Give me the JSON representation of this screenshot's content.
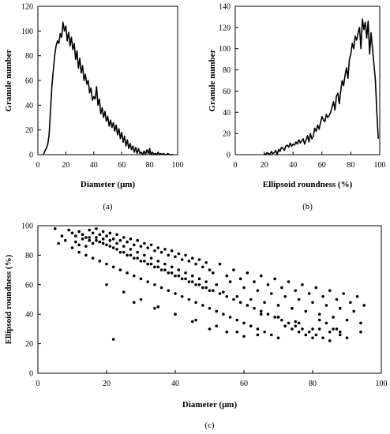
{
  "chart_data": [
    {
      "id": "a",
      "type": "line",
      "panel_label": "(a)",
      "xlabel": "Diameter (μm)",
      "ylabel": "Granule number",
      "xlim": [
        0,
        100
      ],
      "ylim": [
        0,
        120
      ],
      "xticks": [
        0,
        20,
        40,
        60,
        80,
        100
      ],
      "yticks": [
        0,
        20,
        40,
        60,
        80,
        100,
        120
      ],
      "grid": false,
      "series": [
        {
          "x": [
            4,
            5,
            6,
            7,
            8,
            9,
            10,
            11,
            12,
            13,
            14,
            15,
            16,
            17,
            18,
            19,
            20,
            21,
            22,
            23,
            24,
            25,
            26,
            27,
            28,
            29,
            30,
            31,
            32,
            33,
            34,
            35,
            36,
            37,
            38,
            39,
            40,
            41,
            42,
            43,
            44,
            45,
            46,
            47,
            48,
            49,
            50,
            51,
            52,
            53,
            54,
            55,
            56,
            57,
            58,
            59,
            60,
            61,
            62,
            63,
            64,
            65,
            66,
            67,
            68,
            69,
            70,
            71,
            72,
            73,
            74,
            75,
            76,
            77,
            78,
            79,
            80,
            81,
            82,
            83,
            84,
            85,
            86,
            87,
            88,
            89,
            90,
            91,
            92,
            93,
            94,
            95,
            96,
            97
          ],
          "y": [
            0,
            3,
            5,
            8,
            16,
            35,
            55,
            68,
            80,
            88,
            92,
            90,
            98,
            95,
            107,
            100,
            104,
            92,
            99,
            88,
            95,
            85,
            90,
            77,
            84,
            70,
            78,
            66,
            72,
            60,
            65,
            57,
            60,
            50,
            54,
            44,
            47,
            45,
            55,
            40,
            45,
            33,
            38,
            30,
            35,
            27,
            31,
            23,
            28,
            22,
            26,
            19,
            24,
            16,
            21,
            13,
            18,
            10,
            15,
            7,
            12,
            5,
            9,
            4,
            7,
            2,
            6,
            1,
            5,
            1,
            2,
            0,
            3,
            0,
            4,
            1,
            5,
            0,
            2,
            0,
            1,
            0,
            2,
            0,
            1,
            0,
            1,
            0,
            0,
            1,
            0,
            0,
            0,
            0
          ]
        }
      ]
    },
    {
      "id": "b",
      "type": "line",
      "panel_label": "(b)",
      "xlabel": "Ellipsoid roundness (%)",
      "ylabel": "Granule number",
      "xlim": [
        0,
        100
      ],
      "ylim": [
        0,
        140
      ],
      "xticks": [
        0,
        20,
        40,
        60,
        80,
        100
      ],
      "yticks": [
        0,
        20,
        40,
        60,
        80,
        100,
        120,
        140
      ],
      "grid": false,
      "series": [
        {
          "x": [
            20,
            21,
            22,
            23,
            24,
            25,
            26,
            27,
            28,
            29,
            30,
            31,
            32,
            33,
            34,
            35,
            36,
            37,
            38,
            39,
            40,
            41,
            42,
            43,
            44,
            45,
            46,
            47,
            48,
            49,
            50,
            51,
            52,
            53,
            54,
            55,
            56,
            57,
            58,
            59,
            60,
            61,
            62,
            63,
            64,
            65,
            66,
            67,
            68,
            69,
            70,
            71,
            72,
            73,
            74,
            75,
            76,
            77,
            78,
            79,
            80,
            81,
            82,
            83,
            84,
            85,
            86,
            87,
            88,
            89,
            90,
            91,
            92,
            93,
            94,
            95,
            96,
            97,
            98,
            99
          ],
          "y": [
            1,
            0,
            2,
            1,
            0,
            3,
            1,
            2,
            4,
            0,
            5,
            3,
            7,
            6,
            4,
            8,
            9,
            7,
            11,
            8,
            10,
            9,
            12,
            10,
            14,
            11,
            13,
            15,
            10,
            14,
            18,
            12,
            20,
            15,
            17,
            25,
            22,
            28,
            24,
            30,
            36,
            33,
            31,
            38,
            35,
            37,
            40,
            45,
            50,
            42,
            55,
            58,
            48,
            60,
            70,
            65,
            75,
            82,
            72,
            90,
            95,
            105,
            100,
            112,
            108,
            115,
            120,
            100,
            128,
            118,
            125,
            110,
            126,
            95,
            115,
            100,
            85,
            70,
            40,
            15
          ]
        }
      ]
    },
    {
      "id": "c",
      "type": "scatter",
      "panel_label": "(c)",
      "xlabel": "Diameter (μm)",
      "ylabel": "Ellipsoid roundness (%)",
      "xlim": [
        0,
        100
      ],
      "ylim": [
        0,
        100
      ],
      "xticks": [
        0,
        20,
        40,
        60,
        80,
        100
      ],
      "yticks": [
        0,
        20,
        40,
        60,
        80,
        100
      ],
      "grid": false,
      "series": [
        {
          "x": [
            5,
            6,
            7,
            8,
            9,
            10,
            10,
            11,
            11,
            12,
            12,
            13,
            13,
            14,
            14,
            15,
            15,
            16,
            16,
            17,
            17,
            18,
            18,
            19,
            19,
            20,
            20,
            21,
            21,
            22,
            22,
            23,
            23,
            24,
            24,
            25,
            25,
            26,
            26,
            27,
            27,
            28,
            28,
            29,
            29,
            30,
            30,
            31,
            31,
            32,
            32,
            33,
            33,
            34,
            34,
            35,
            35,
            36,
            36,
            37,
            37,
            38,
            38,
            39,
            39,
            40,
            40,
            41,
            41,
            42,
            42,
            43,
            43,
            44,
            44,
            45,
            45,
            46,
            46,
            47,
            47,
            48,
            48,
            49,
            49,
            50,
            50,
            51,
            52,
            53,
            54,
            55,
            56,
            57,
            58,
            59,
            60,
            61,
            62,
            63,
            64,
            65,
            66,
            67,
            68,
            69,
            70,
            71,
            72,
            73,
            74,
            75,
            76,
            77,
            78,
            79,
            80,
            81,
            82,
            83,
            84,
            85,
            86,
            87,
            88,
            89,
            90,
            91,
            92,
            93,
            94,
            95,
            12,
            14,
            16,
            18,
            20,
            22,
            24,
            26,
            28,
            30,
            32,
            34,
            36,
            38,
            40,
            42,
            44,
            46,
            48,
            50,
            52,
            54,
            56,
            58,
            60,
            62,
            64,
            66,
            68,
            70,
            72,
            74,
            76,
            78,
            80,
            82,
            84,
            86,
            88,
            15,
            17,
            19,
            21,
            23,
            25,
            27,
            29,
            31,
            33,
            35,
            37,
            39,
            41,
            43,
            45,
            47,
            49,
            51,
            53,
            55,
            57,
            59,
            61,
            63,
            65,
            67,
            69,
            71,
            73,
            75,
            77,
            79,
            81,
            83,
            85,
            87,
            20,
            25,
            30,
            35,
            40,
            45,
            50,
            55,
            60,
            65,
            70,
            75,
            80,
            85,
            90,
            22,
            28,
            34,
            40,
            46,
            52,
            58,
            64,
            70,
            76,
            82,
            88,
            94
          ],
          "y": [
            98,
            88,
            93,
            90,
            97,
            85,
            95,
            89,
            93,
            87,
            96,
            91,
            94,
            86,
            92,
            90,
            97,
            88,
            95,
            92,
            98,
            89,
            94,
            91,
            96,
            87,
            93,
            90,
            95,
            85,
            91,
            88,
            94,
            82,
            90,
            86,
            92,
            80,
            89,
            84,
            91,
            78,
            87,
            82,
            90,
            76,
            86,
            80,
            88,
            74,
            85,
            78,
            87,
            72,
            83,
            76,
            85,
            70,
            82,
            74,
            84,
            68,
            80,
            72,
            83,
            66,
            79,
            70,
            81,
            64,
            77,
            68,
            80,
            62,
            76,
            66,
            78,
            60,
            74,
            64,
            77,
            58,
            72,
            62,
            75,
            56,
            70,
            68,
            60,
            74,
            55,
            66,
            62,
            70,
            52,
            64,
            58,
            68,
            50,
            62,
            56,
            66,
            48,
            60,
            54,
            64,
            46,
            58,
            52,
            62,
            44,
            56,
            50,
            60,
            42,
            54,
            48,
            58,
            40,
            52,
            46,
            56,
            38,
            50,
            44,
            54,
            36,
            48,
            42,
            52,
            34,
            46,
            82,
            80,
            78,
            76,
            74,
            72,
            70,
            68,
            66,
            64,
            62,
            60,
            58,
            56,
            54,
            52,
            50,
            48,
            46,
            44,
            42,
            40,
            38,
            36,
            34,
            32,
            30,
            28,
            26,
            24,
            32,
            30,
            28,
            26,
            24,
            36,
            34,
            30,
            28,
            92,
            90,
            88,
            86,
            84,
            82,
            80,
            78,
            76,
            74,
            72,
            70,
            68,
            66,
            64,
            62,
            60,
            58,
            56,
            54,
            52,
            50,
            48,
            46,
            44,
            42,
            40,
            38,
            36,
            34,
            32,
            30,
            28,
            26,
            24,
            22,
            30,
            60,
            55,
            50,
            45,
            40,
            35,
            30,
            28,
            25,
            40,
            38,
            35,
            30,
            28,
            24,
            23,
            48,
            44,
            40,
            36,
            32,
            28,
            26,
            38,
            34,
            30,
            26,
            28
          ]
        }
      ]
    }
  ]
}
